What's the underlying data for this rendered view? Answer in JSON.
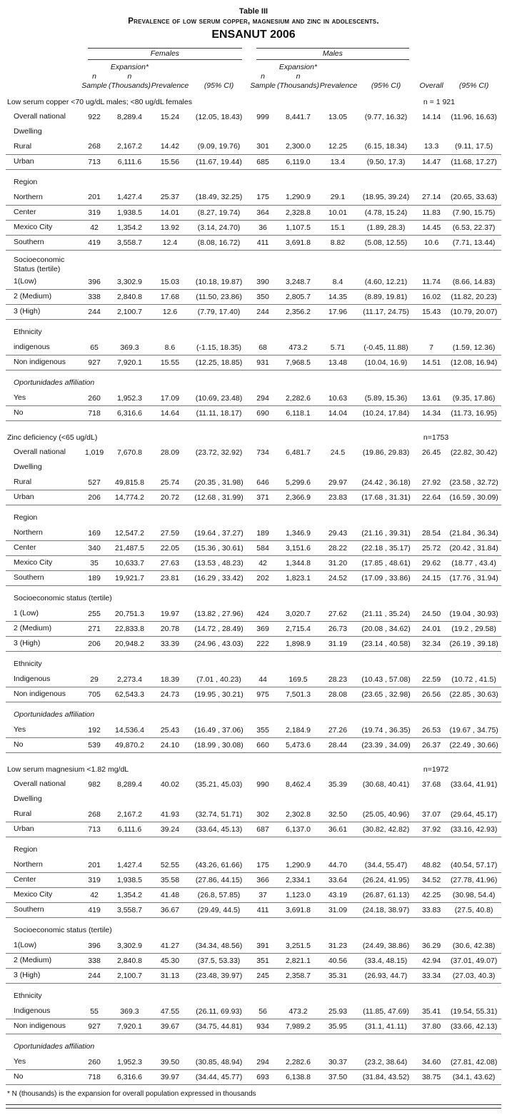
{
  "page": {
    "table_label": "Table III",
    "title": "Prevalence of low serum copper, magnesium and zinc in adolescents.",
    "subtitle": "ENSANUT 2006",
    "footnote": "* N (thousands) is the expansion for overall population expressed in thousands"
  },
  "columns": {
    "females": "Females",
    "males": "Males",
    "n_sample": "n\nSample",
    "expansion": "Expansion*\nn\n(Thousands)",
    "prevalence": "Prevalence",
    "ci": "(95% CI)",
    "overall": "Overall",
    "overall_ci": "(95% CI)"
  },
  "sections": [
    {
      "title": "Low serum copper <70 ug/dL males; <80 ug/dL females",
      "n_label": "n = 1 921",
      "rows": [
        {
          "t": "data",
          "label": "Overall national",
          "cells": [
            "922",
            "8,289.4",
            "15.24",
            "(12.05, 18.43)",
            "999",
            "8,441.7",
            "13.05",
            "(9.77, 16.32)",
            "14.14",
            "(11.96, 16.63)"
          ]
        },
        {
          "t": "sub",
          "label": "Dwelling"
        },
        {
          "t": "data",
          "label": "Rural",
          "b": true,
          "cells": [
            "268",
            "2,167.2",
            "14.42",
            "(9.09, 19.76)",
            "301",
            "2,300.0",
            "12.25",
            "(6.15, 18.34)",
            "13.3",
            "(9.11, 17.5)"
          ]
        },
        {
          "t": "data",
          "label": "Urban",
          "b": true,
          "cells": [
            "713",
            "6,111.6",
            "15.56",
            "(11.67, 19.44)",
            "685",
            "6,119.0",
            "13.4",
            "(9.50, 17.3)",
            "14.47",
            "(11.68, 17.27)"
          ]
        },
        {
          "t": "gap"
        },
        {
          "t": "sub",
          "label": "Region"
        },
        {
          "t": "data",
          "label": "Northern",
          "b": true,
          "cells": [
            "201",
            "1,427.4",
            "25.37",
            "(18.49, 32.25)",
            "175",
            "1,290.9",
            "29.1",
            "(18.95, 39.24)",
            "27.14",
            "(20.65, 33.63)"
          ]
        },
        {
          "t": "data",
          "label": "Center",
          "b": true,
          "cells": [
            "319",
            "1,938.5",
            "14.01",
            "(8.27, 19.74)",
            "364",
            "2,328.8",
            "10.01",
            "(4.78, 15.24)",
            "11.83",
            "(7.90, 15.75)"
          ]
        },
        {
          "t": "data",
          "label": "Mexico City",
          "b": true,
          "cells": [
            "42",
            "1,354.2",
            "13.92",
            "(3.14, 24.70)",
            "36",
            "1,107.5",
            "15.1",
            "(1.89, 28.3)",
            "14.45",
            "(6.53, 22.37)"
          ]
        },
        {
          "t": "data",
          "label": "Southern",
          "b": true,
          "cells": [
            "419",
            "3,558.7",
            "12.4",
            "(8.08, 16.72)",
            "411",
            "3,691.8",
            "8.82",
            "(5.08, 12.55)",
            "10.6",
            "(7.71, 13.44)"
          ]
        },
        {
          "t": "gap"
        },
        {
          "t": "sub",
          "label": "Socioeconomic\nStatus (tertile)"
        },
        {
          "t": "data",
          "label": "1(Low)",
          "b": true,
          "cells": [
            "396",
            "3,302.9",
            "15.03",
            "(10.18, 19.87)",
            "390",
            "3,248.7",
            "8.4",
            "(4.60, 12.21)",
            "11.74",
            "(8.66, 14.83)"
          ]
        },
        {
          "t": "data",
          "label": "2 (Medium)",
          "b": true,
          "cells": [
            "338",
            "2,840.8",
            "17.68",
            "(11.50, 23.86)",
            "350",
            "2,805.7",
            "14.35",
            "(8.89, 19.81)",
            "16.02",
            "(11.82, 20.23)"
          ]
        },
        {
          "t": "data",
          "label": "3 (High)",
          "b": true,
          "cells": [
            "244",
            "2,100.7",
            "12.6",
            "(7.79, 17.40)",
            "244",
            "2,356.2",
            "17.96",
            "(11.17, 24.75)",
            "15.43",
            "(10.79, 20.07)"
          ]
        },
        {
          "t": "gap"
        },
        {
          "t": "sub",
          "label": "Ethnicity"
        },
        {
          "t": "data",
          "label": "indigenous",
          "b": true,
          "cells": [
            "65",
            "369.3",
            "8.6",
            "(-1.15, 18.35)",
            "68",
            "473.2",
            "5.71",
            "(-0.45, 11.88)",
            "7",
            "(1.59, 12.36)"
          ]
        },
        {
          "t": "data",
          "label": "Non indigenous",
          "b": true,
          "cells": [
            "927",
            "7,920.1",
            "15.55",
            "(12.25, 18.85)",
            "931",
            "7,968.5",
            "13.48",
            "(10.04, 16.9)",
            "14.51",
            "(12.08, 16.94)"
          ]
        },
        {
          "t": "gap"
        },
        {
          "t": "sub",
          "label": "Oportunidades affiliation",
          "i": true
        },
        {
          "t": "data",
          "label": "Yes",
          "b": true,
          "cells": [
            "260",
            "1,952.3",
            "17.09",
            "(10.69, 23.48)",
            "294",
            "2,282.6",
            "10.63",
            "(5.89, 15.36)",
            "13.61",
            "(9.35, 17.86)"
          ]
        },
        {
          "t": "data",
          "label": "No",
          "b": true,
          "cells": [
            "718",
            "6,316.6",
            "14.64",
            "(11.11, 18.17)",
            "690",
            "6,118.1",
            "14.04",
            "(10.24, 17.84)",
            "14.34",
            "(11.73, 16.95)"
          ]
        }
      ]
    },
    {
      "title": "Zinc deficiency (<65 ug/dL)",
      "n_label": "n=1753",
      "rows": [
        {
          "t": "data",
          "label": "Overall national",
          "cells": [
            "1,019",
            "7,670.8",
            "28.09",
            "(23.72, 32.92)",
            "734",
            "6,481.7",
            "24.5",
            "(19.86, 29.83)",
            "26.45",
            "(22.82, 30.42)"
          ]
        },
        {
          "t": "sub",
          "label": "Dwelling"
        },
        {
          "t": "data",
          "label": "Rural",
          "b": true,
          "cells": [
            "527",
            "49,815.8",
            "25.74",
            "(20.35 , 31.98)",
            "646",
            "5,299.6",
            "29.97",
            "(24.42 , 36.18)",
            "27.92",
            "(23.58 , 32.72)"
          ]
        },
        {
          "t": "data",
          "label": "Urban",
          "b": true,
          "cells": [
            "206",
            "14,774.2",
            "20.72",
            "(12.68 , 31.99)",
            "371",
            "2,366.9",
            "23.83",
            "(17.68 , 31.31)",
            "22.64",
            "(16.59 , 30.09)"
          ]
        },
        {
          "t": "gap"
        },
        {
          "t": "sub",
          "label": "Region"
        },
        {
          "t": "data",
          "label": "Northern",
          "b": true,
          "cells": [
            "169",
            "12,547.2",
            "27.59",
            "(19.64 , 37.27)",
            "189",
            "1,346.9",
            "29.43",
            "(21.16 , 39.31)",
            "28.54",
            "(21.84 , 36.34)"
          ]
        },
        {
          "t": "data",
          "label": "Center",
          "b": true,
          "cells": [
            "340",
            "21,487.5",
            "22.05",
            "(15.36 , 30.61)",
            "584",
            "3,151.6",
            "28.22",
            "(22.18 , 35.17)",
            "25.72",
            "(20.42 , 31.84)"
          ]
        },
        {
          "t": "data",
          "label": "Mexico City",
          "b": true,
          "cells": [
            "35",
            "10,633.7",
            "27.63",
            "(13.53 , 48.23)",
            "42",
            "1,344.8",
            "31.20",
            "(17.85 , 48.61)",
            "29.62",
            "(18.77 , 43.4)"
          ]
        },
        {
          "t": "data",
          "label": "Southern",
          "b": true,
          "cells": [
            "189",
            "19,921.7",
            "23.81",
            "(16.29 , 33.42)",
            "202",
            "1,823.1",
            "24.52",
            "(17.09 , 33.86)",
            "24.15",
            "(17.76 , 31.94)"
          ]
        },
        {
          "t": "gap"
        },
        {
          "t": "sub",
          "label": "Socioeconomic status (tertile)"
        },
        {
          "t": "data",
          "label": "1 (Low)",
          "b": true,
          "cells": [
            "255",
            "20,751.3",
            "19.97",
            "(13.82 , 27.96)",
            "424",
            "3,020.7",
            "27.62",
            "(21.11 , 35.24)",
            "24.50",
            "(19.04 , 30.93)"
          ]
        },
        {
          "t": "data",
          "label": "2 (Medium)",
          "b": true,
          "cells": [
            "271",
            "22,833.8",
            "20.78",
            "(14.72 , 28.49)",
            "369",
            "2,715.4",
            "26.73",
            "(20.08 , 34.62)",
            "24.01",
            "(19.2 , 29.58)"
          ]
        },
        {
          "t": "data",
          "label": "3 (High)",
          "b": true,
          "cells": [
            "206",
            "20,948.2",
            "33.39",
            "(24.96 , 43.03)",
            "222",
            "1,898.9",
            "31.19",
            "(23.14 , 40.58)",
            "32.34",
            "(26.19 , 39.18)"
          ]
        },
        {
          "t": "gap"
        },
        {
          "t": "sub",
          "label": "Ethnicity"
        },
        {
          "t": "data",
          "label": "Indigenous",
          "b": true,
          "cells": [
            "29",
            "2,273.4",
            "18.39",
            "(7.01 , 40.23)",
            "44",
            "169.5",
            "28.23",
            "(10.43 , 57.08)",
            "22.59",
            "(10.72 , 41.5)"
          ]
        },
        {
          "t": "data",
          "label": "Non indigenous",
          "b": true,
          "cells": [
            "705",
            "62,543.3",
            "24.73",
            "(19.95 , 30.21)",
            "975",
            "7,501.3",
            "28.08",
            "(23.65 , 32.98)",
            "26.56",
            "(22.85 , 30.63)"
          ]
        },
        {
          "t": "gap"
        },
        {
          "t": "sub",
          "label": "Oportunidades affiliation",
          "i": true
        },
        {
          "t": "data",
          "label": "Yes",
          "b": true,
          "cells": [
            "192",
            "14,536.4",
            "25.43",
            "(16.49 , 37.06)",
            "355",
            "2,184.9",
            "27.26",
            "(19.74 , 36.35)",
            "26.53",
            "(19.67 , 34.75)"
          ]
        },
        {
          "t": "data",
          "label": "No",
          "b": true,
          "cells": [
            "539",
            "49,870.2",
            "24.10",
            "(18.99 , 30.08)",
            "660",
            "5,473.6",
            "28.44",
            "(23.39 , 34.09)",
            "26.37",
            "(22.49 , 30.66)"
          ]
        }
      ]
    },
    {
      "title": "Low serum magnesium <1.82 mg/dL",
      "n_label": "n=1972",
      "rows": [
        {
          "t": "data",
          "label": "Overall national",
          "cells": [
            "982",
            "8,289.4",
            "40.02",
            "(35.21, 45.03)",
            "990",
            "8,462.4",
            "35.39",
            "(30.68, 40.41)",
            "37.68",
            "(33.64, 41.91)"
          ]
        },
        {
          "t": "sub",
          "label": "Dwelling"
        },
        {
          "t": "data",
          "label": "Rural",
          "b": true,
          "cells": [
            "268",
            "2,167.2",
            "41.93",
            "(32.74, 51.71)",
            "302",
            "2,302.8",
            "32.50",
            "(25.05, 40.96)",
            "37.07",
            "(29.64, 45.17)"
          ]
        },
        {
          "t": "data",
          "label": "Urban",
          "b": true,
          "cells": [
            "713",
            "6,111.6",
            "39.24",
            "(33.64, 45.13)",
            "687",
            "6,137.0",
            "36.61",
            "(30.82, 42.82)",
            "37.92",
            "(33.16, 42.93)"
          ]
        },
        {
          "t": "gap"
        },
        {
          "t": "sub",
          "label": "Region"
        },
        {
          "t": "data",
          "label": "Northern",
          "b": true,
          "cells": [
            "201",
            "1,427.4",
            "52.55",
            "(43.26, 61.66)",
            "175",
            "1,290.9",
            "44.70",
            "(34.4, 55.47)",
            "48.82",
            "(40.54, 57.17)"
          ]
        },
        {
          "t": "data",
          "label": "Center",
          "b": true,
          "cells": [
            "319",
            "1,938.5",
            "35.58",
            "(27.86, 44.15)",
            "366",
            "2,334.1",
            "33.64",
            "(26.24, 41.95)",
            "34.52",
            "(27.78, 41.96)"
          ]
        },
        {
          "t": "data",
          "label": "Mexico City",
          "b": true,
          "cells": [
            "42",
            "1,354.2",
            "41.48",
            "(26.8, 57.85)",
            "37",
            "1,123.0",
            "43.19",
            "(26.87, 61.13)",
            "42.25",
            "(30.98, 54.4)"
          ]
        },
        {
          "t": "data",
          "label": "Southern",
          "b": true,
          "cells": [
            "419",
            "3,558.7",
            "36.67",
            "(29.49, 44.5)",
            "411",
            "3,691.8",
            "31.09",
            "(24.18, 38.97)",
            "33.83",
            "(27.5, 40.8)"
          ]
        },
        {
          "t": "gap"
        },
        {
          "t": "sub",
          "label": "Socioeconomic status (tertile)"
        },
        {
          "t": "data",
          "label": "1(Low)",
          "b": true,
          "cells": [
            "396",
            "3,302.9",
            "41.27",
            "(34.34, 48.56)",
            "391",
            "3,251.5",
            "31.23",
            "(24.49, 38.86)",
            "36.29",
            "(30.6, 42.38)"
          ]
        },
        {
          "t": "data",
          "label": "2 (Medium)",
          "b": true,
          "cells": [
            "338",
            "2,840.8",
            "45.30",
            "(37.5, 53.33)",
            "351",
            "2,821.1",
            "40.56",
            "(33.4, 48.15)",
            "42.94",
            "(37.01, 49.07)"
          ]
        },
        {
          "t": "data",
          "label": "3 (High)",
          "b": true,
          "cells": [
            "244",
            "2,100.7",
            "31.13",
            "(23.48, 39.97)",
            "245",
            "2,358.7",
            "35.31",
            "(26.93, 44.7)",
            "33.34",
            "(27.03, 40.3)"
          ]
        },
        {
          "t": "gap"
        },
        {
          "t": "sub",
          "label": "Ethnicity"
        },
        {
          "t": "data",
          "label": "Indigenous",
          "b": true,
          "cells": [
            "55",
            "369.3",
            "47.55",
            "(26.11, 69.93)",
            "56",
            "473.2",
            "25.93",
            "(11.85, 47.69)",
            "35.41",
            "(19.54, 55.31)"
          ]
        },
        {
          "t": "data",
          "label": "Non indigenous",
          "b": true,
          "cells": [
            "927",
            "7,920.1",
            "39.67",
            "(34.75, 44.81)",
            "934",
            "7,989.2",
            "35.95",
            "(31.1, 41.11)",
            "37.80",
            "(33.66, 42.13)"
          ]
        },
        {
          "t": "gap"
        },
        {
          "t": "sub",
          "label": "Oportunidades affiliation",
          "i": true
        },
        {
          "t": "data",
          "label": "Yes",
          "b": true,
          "cells": [
            "260",
            "1,952.3",
            "39.50",
            "(30.85, 48.94)",
            "294",
            "2,282.6",
            "30.37",
            "(23.2, 38.64)",
            "34.60",
            "(27.81, 42.08)"
          ]
        },
        {
          "t": "data",
          "label": "No",
          "b": true,
          "cells": [
            "718",
            "6,316.6",
            "39.97",
            "(34.44, 45.77)",
            "693",
            "6,138.8",
            "37.50",
            "(31.84, 43.52)",
            "38.75",
            "(34.1, 43.62)"
          ]
        }
      ]
    }
  ]
}
